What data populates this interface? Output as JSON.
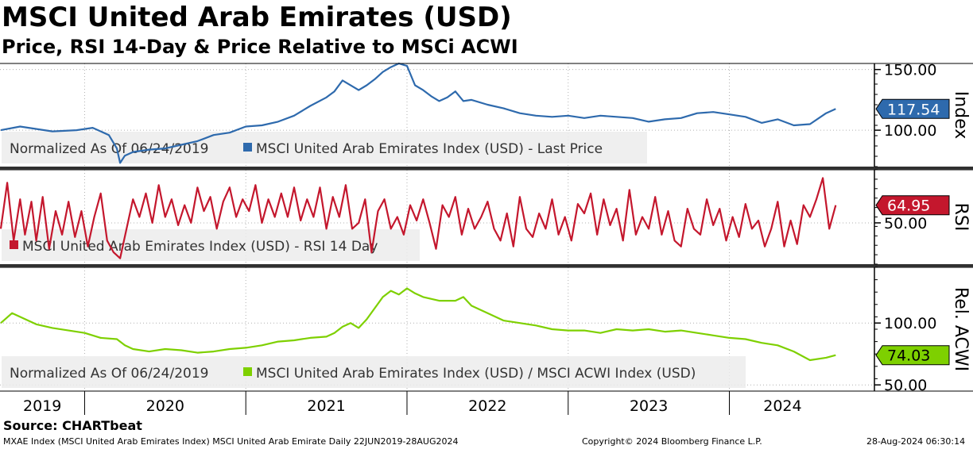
{
  "header": {
    "title": "MSCI United Arab Emirates (USD)",
    "subtitle": "Price, RSI 14-Day & Price Relative to MSCi ACWI"
  },
  "footer": {
    "source": "Source: CHARTbeat",
    "info": "MXAE Index (MSCI United Arab Emirates Index) MSCI United Arab Emirate  Daily 22JUN2019-28AUG2024",
    "copyright": "Copyright© 2024 Bloomberg Finance L.P.",
    "timestamp": "28-Aug-2024 06:30:14"
  },
  "chart_data": [
    {
      "type": "line",
      "panel": "price",
      "ylabel": "Index",
      "ylim": [
        70,
        155
      ],
      "yticks": [
        "150.00",
        "100.00"
      ],
      "legend": "Normalized As Of 06/24/2019",
      "last_value_label": "117.54",
      "color": "#2e6aad",
      "series": [
        {
          "name": "MSCI United Arab Emirates Index (USD) - Last Price",
          "x": [
            2019.48,
            2019.6,
            2019.8,
            2019.95,
            2020.05,
            2020.15,
            2020.2,
            2020.22,
            2020.25,
            2020.3,
            2020.4,
            2020.5,
            2020.6,
            2020.7,
            2020.8,
            2020.9,
            2021.0,
            2021.1,
            2021.2,
            2021.3,
            2021.4,
            2021.5,
            2021.55,
            2021.6,
            2021.7,
            2021.75,
            2021.8,
            2021.85,
            2021.9,
            2021.95,
            2022.0,
            2022.05,
            2022.1,
            2022.15,
            2022.2,
            2022.25,
            2022.3,
            2022.35,
            2022.4,
            2022.5,
            2022.6,
            2022.7,
            2022.8,
            2022.9,
            2023.0,
            2023.1,
            2023.2,
            2023.3,
            2023.4,
            2023.5,
            2023.6,
            2023.7,
            2023.8,
            2023.9,
            2024.0,
            2024.1,
            2024.2,
            2024.3,
            2024.4,
            2024.5,
            2024.6,
            2024.66
          ],
          "values": [
            100,
            103,
            99,
            100,
            102,
            96,
            85,
            73,
            79,
            82,
            84,
            85,
            88,
            91,
            96,
            98,
            103,
            104,
            107,
            112,
            120,
            127,
            132,
            141,
            133,
            137,
            142,
            148,
            152,
            155,
            153,
            137,
            133,
            128,
            124,
            127,
            132,
            124,
            125,
            121,
            118,
            114,
            112,
            111,
            112,
            110,
            112,
            111,
            110,
            107,
            109,
            110,
            114,
            115,
            113,
            111,
            106,
            109,
            104,
            105,
            114,
            117.54
          ]
        }
      ]
    },
    {
      "type": "line",
      "panel": "rsi",
      "ylabel": "RSI",
      "ylim": [
        15,
        95
      ],
      "yticks": [
        "50.00"
      ],
      "last_value_label": "64.95",
      "color": "#c4172d",
      "series": [
        {
          "name": "MSCI United Arab Emirates Index (USD) - RSI 14 Day",
          "x": [
            2019.48,
            2019.52,
            2019.56,
            2019.6,
            2019.63,
            2019.67,
            2019.7,
            2019.74,
            2019.78,
            2019.82,
            2019.86,
            2019.9,
            2019.94,
            2019.98,
            2020.02,
            2020.06,
            2020.1,
            2020.14,
            2020.18,
            2020.22,
            2020.26,
            2020.3,
            2020.34,
            2020.38,
            2020.42,
            2020.46,
            2020.5,
            2020.54,
            2020.58,
            2020.62,
            2020.66,
            2020.7,
            2020.74,
            2020.78,
            2020.82,
            2020.86,
            2020.9,
            2020.94,
            2020.98,
            2021.02,
            2021.06,
            2021.1,
            2021.14,
            2021.18,
            2021.22,
            2021.26,
            2021.3,
            2021.34,
            2021.38,
            2021.42,
            2021.46,
            2021.5,
            2021.54,
            2021.58,
            2021.62,
            2021.66,
            2021.7,
            2021.74,
            2021.78,
            2021.82,
            2021.86,
            2021.9,
            2021.94,
            2021.98,
            2022.02,
            2022.06,
            2022.1,
            2022.14,
            2022.18,
            2022.22,
            2022.26,
            2022.3,
            2022.34,
            2022.38,
            2022.42,
            2022.46,
            2022.5,
            2022.54,
            2022.58,
            2022.62,
            2022.66,
            2022.7,
            2022.74,
            2022.78,
            2022.82,
            2022.86,
            2022.9,
            2022.94,
            2022.98,
            2023.02,
            2023.06,
            2023.1,
            2023.14,
            2023.18,
            2023.22,
            2023.26,
            2023.3,
            2023.34,
            2023.38,
            2023.42,
            2023.46,
            2023.5,
            2023.54,
            2023.58,
            2023.62,
            2023.66,
            2023.7,
            2023.74,
            2023.78,
            2023.82,
            2023.86,
            2023.9,
            2023.94,
            2023.98,
            2024.02,
            2024.06,
            2024.1,
            2024.14,
            2024.18,
            2024.22,
            2024.26,
            2024.3,
            2024.34,
            2024.38,
            2024.42,
            2024.46,
            2024.5,
            2024.54,
            2024.58,
            2024.62,
            2024.66
          ],
          "values": [
            45,
            84,
            35,
            70,
            40,
            68,
            35,
            72,
            28,
            60,
            40,
            68,
            38,
            60,
            30,
            55,
            75,
            35,
            25,
            20,
            45,
            70,
            55,
            75,
            50,
            82,
            55,
            70,
            48,
            65,
            50,
            80,
            60,
            72,
            45,
            68,
            80,
            55,
            70,
            60,
            82,
            50,
            70,
            55,
            75,
            55,
            80,
            52,
            70,
            55,
            80,
            45,
            72,
            55,
            82,
            45,
            50,
            70,
            25,
            60,
            70,
            45,
            55,
            40,
            65,
            52,
            70,
            50,
            28,
            65,
            55,
            72,
            40,
            62,
            45,
            55,
            68,
            45,
            35,
            58,
            30,
            72,
            45,
            38,
            58,
            45,
            70,
            40,
            55,
            35,
            66,
            58,
            75,
            40,
            70,
            48,
            62,
            35,
            78,
            40,
            55,
            45,
            72,
            40,
            60,
            35,
            30,
            62,
            45,
            40,
            70,
            48,
            62,
            35,
            55,
            38,
            66,
            45,
            52,
            30,
            45,
            68,
            30,
            52,
            32,
            65,
            55,
            70,
            88,
            45,
            64.95
          ]
        }
      ]
    },
    {
      "type": "line",
      "panel": "relative",
      "ylabel": "Rel. ACWI",
      "ylim": [
        45,
        145
      ],
      "yticks": [
        "100.00",
        "50.00"
      ],
      "legend": "Normalized As Of 06/24/2019",
      "last_value_label": "74.03",
      "color": "#7ed000",
      "series": [
        {
          "name": "MSCI United Arab Emirates Index (USD) / MSCI ACWI Index (USD)",
          "x": [
            2019.48,
            2019.55,
            2019.7,
            2019.8,
            2019.9,
            2020.0,
            2020.1,
            2020.2,
            2020.25,
            2020.3,
            2020.4,
            2020.5,
            2020.6,
            2020.7,
            2020.8,
            2020.9,
            2021.0,
            2021.1,
            2021.2,
            2021.3,
            2021.4,
            2021.5,
            2021.55,
            2021.6,
            2021.65,
            2021.7,
            2021.75,
            2021.8,
            2021.85,
            2021.9,
            2021.95,
            2022.0,
            2022.05,
            2022.1,
            2022.2,
            2022.3,
            2022.35,
            2022.4,
            2022.5,
            2022.6,
            2022.7,
            2022.8,
            2022.9,
            2023.0,
            2023.1,
            2023.2,
            2023.3,
            2023.4,
            2023.5,
            2023.6,
            2023.7,
            2023.8,
            2023.9,
            2024.0,
            2024.1,
            2024.2,
            2024.3,
            2024.4,
            2024.5,
            2024.6,
            2024.66
          ],
          "values": [
            100,
            108,
            99,
            96,
            94,
            92,
            88,
            87,
            82,
            79,
            77,
            79,
            78,
            76,
            77,
            79,
            80,
            82,
            85,
            86,
            88,
            89,
            92,
            97,
            100,
            96,
            103,
            112,
            121,
            126,
            123,
            128,
            124,
            121,
            118,
            118,
            121,
            114,
            108,
            102,
            100,
            98,
            95,
            94,
            94,
            92,
            95,
            94,
            95,
            93,
            94,
            92,
            90,
            88,
            87,
            84,
            82,
            77,
            70,
            72,
            74.03
          ]
        }
      ]
    }
  ],
  "x_axis": {
    "years": [
      "2019",
      "2020",
      "2021",
      "2022",
      "2023",
      "2024"
    ],
    "year_boundaries": [
      2020.0,
      2021.0,
      2022.0,
      2023.0,
      2024.0
    ],
    "xlim": [
      2019.475,
      2024.9
    ]
  }
}
